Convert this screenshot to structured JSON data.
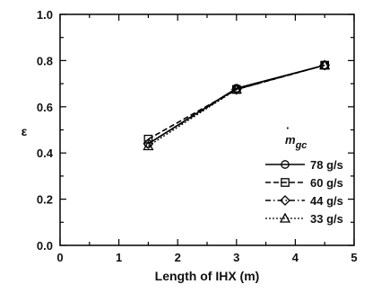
{
  "chart_data": {
    "type": "line",
    "xlabel": "Length  of IHX (m)",
    "ylabel": "ε",
    "xlim": [
      0,
      5
    ],
    "ylim": [
      0.0,
      1.0
    ],
    "xticks": [
      "0",
      "1",
      "2",
      "3",
      "4",
      "5"
    ],
    "yticks": [
      "0.0",
      "0.2",
      "0.4",
      "0.6",
      "0.8",
      "1.0"
    ],
    "grid": false,
    "legend_position": "right",
    "legend_title": "ṁgc",
    "x": [
      1.5,
      3.0,
      4.5
    ],
    "series": [
      {
        "name": "78 g/s",
        "values": [
          0.44,
          0.68,
          0.78
        ],
        "marker": "circle",
        "dash": "solid"
      },
      {
        "name": "60 g/s",
        "values": [
          0.46,
          0.675,
          0.78
        ],
        "marker": "square",
        "dash": "dashed"
      },
      {
        "name": "44 g/s",
        "values": [
          0.44,
          0.675,
          0.78
        ],
        "marker": "diamond",
        "dash": "dashdot"
      },
      {
        "name": "33 g/s",
        "values": [
          0.43,
          0.675,
          0.78
        ],
        "marker": "triangle",
        "dash": "dotted"
      }
    ]
  }
}
